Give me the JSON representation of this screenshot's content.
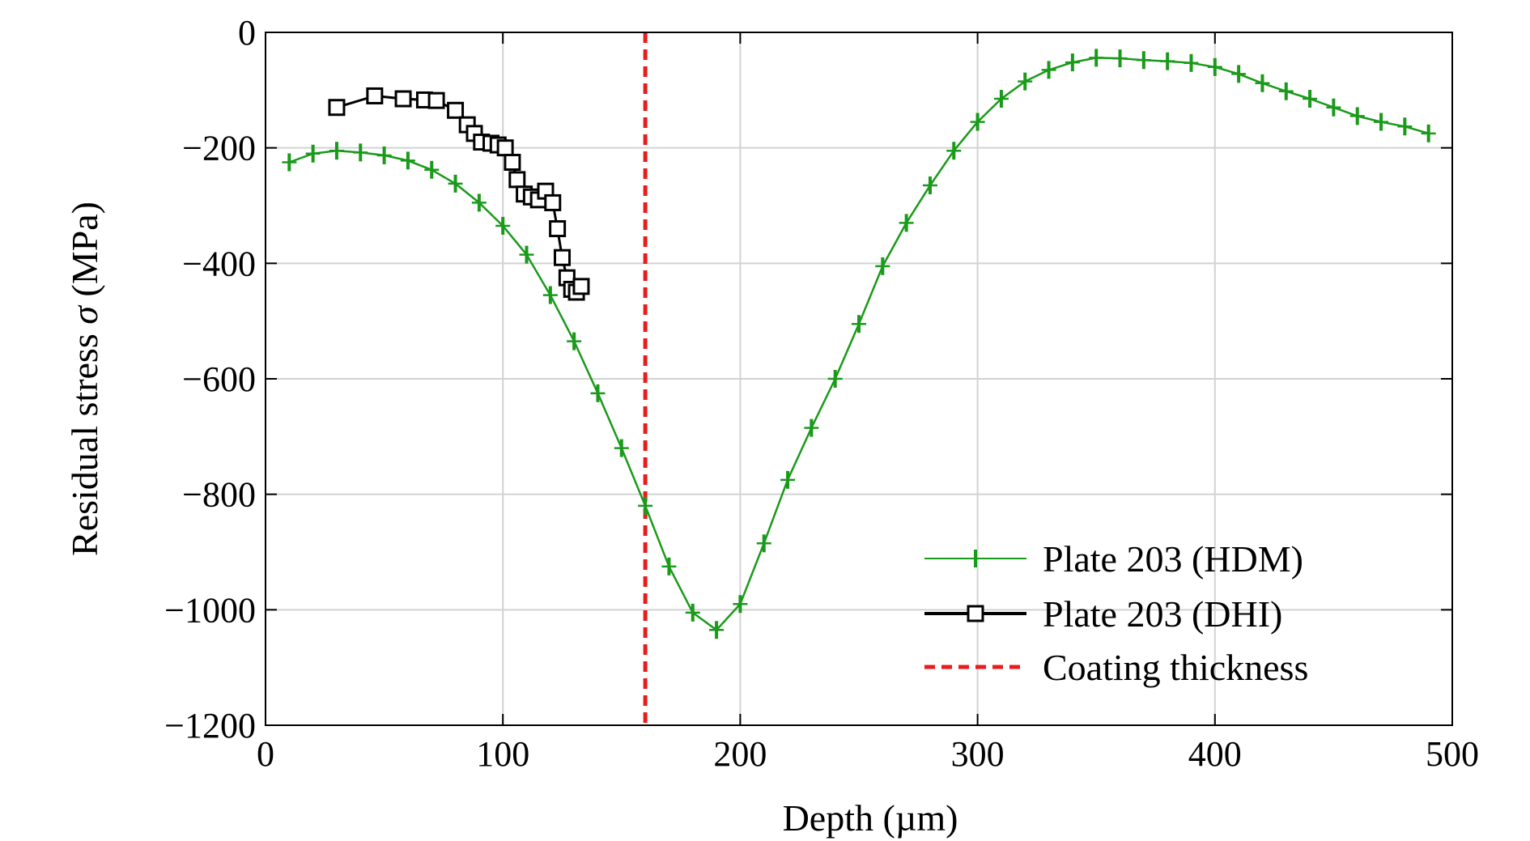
{
  "chart_data": {
    "type": "line",
    "title": "",
    "xlabel": "Depth (µm)",
    "ylabel": "Residual stress",
    "ylabel_symbol": "σ",
    "ylabel_unit": "(MPa)",
    "xlim": [
      0,
      500
    ],
    "ylim": [
      -1200,
      0
    ],
    "xticks": [
      0,
      100,
      200,
      300,
      400,
      500
    ],
    "yticks": [
      0,
      -200,
      -400,
      -600,
      -800,
      -1000,
      -1200
    ],
    "xtick_labels": [
      "0",
      "100",
      "200",
      "300",
      "400",
      "500"
    ],
    "ytick_labels": [
      "0",
      "−200",
      "−400",
      "−600",
      "−800",
      "−1000",
      "−1200"
    ],
    "grid": true,
    "legend_position": "bottom-right",
    "series": [
      {
        "name": "Plate 203 (HDM)",
        "color": "#1a9a1a",
        "marker": "plus",
        "x": [
          10,
          20,
          30,
          40,
          50,
          60,
          70,
          80,
          90,
          100,
          110,
          120,
          130,
          140,
          150,
          160,
          170,
          180,
          190,
          200,
          210,
          220,
          230,
          240,
          250,
          260,
          270,
          280,
          290,
          300,
          310,
          320,
          330,
          340,
          350,
          360,
          370,
          380,
          390,
          400,
          410,
          420,
          430,
          440,
          450,
          460,
          470,
          480,
          490
        ],
        "y": [
          -225,
          -210,
          -205,
          -208,
          -213,
          -222,
          -238,
          -262,
          -295,
          -335,
          -385,
          -455,
          -535,
          -625,
          -720,
          -820,
          -925,
          -1005,
          -1035,
          -990,
          -885,
          -775,
          -685,
          -600,
          -505,
          -405,
          -330,
          -265,
          -205,
          -155,
          -115,
          -85,
          -65,
          -52,
          -44,
          -45,
          -48,
          -50,
          -53,
          -60,
          -72,
          -88,
          -102,
          -115,
          -130,
          -145,
          -155,
          -163,
          -175
        ]
      },
      {
        "name": "Plate 203 (DHI)",
        "color": "#000000",
        "marker": "square",
        "x": [
          30,
          46,
          58,
          67,
          72,
          80,
          85,
          88,
          91,
          95,
          98,
          101,
          104,
          106,
          109,
          112,
          115,
          118,
          121,
          123,
          125,
          127,
          129,
          131,
          133
        ],
        "y": [
          -130,
          -110,
          -115,
          -117,
          -118,
          -135,
          -160,
          -175,
          -190,
          -192,
          -195,
          -200,
          -225,
          -255,
          -280,
          -285,
          -290,
          -275,
          -295,
          -340,
          -390,
          -425,
          -445,
          -450,
          -440
        ]
      }
    ],
    "annotations": [
      {
        "type": "vertical_line",
        "name": "Coating thickness",
        "x": 160,
        "color": "#e81c1c",
        "style": "dashed"
      }
    ]
  }
}
